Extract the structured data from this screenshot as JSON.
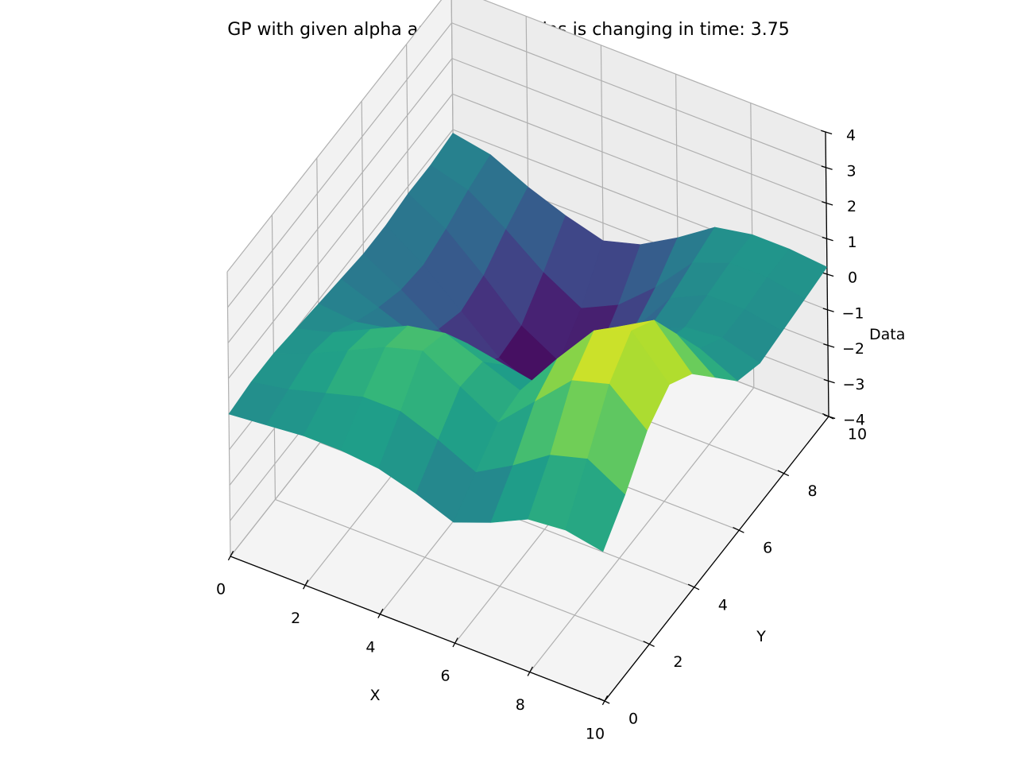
{
  "chart_data": {
    "type": "surface3d",
    "title": "GP with given alpha assuming the bias is changing in time: 3.75",
    "xlabel": "X",
    "ylabel": "Y",
    "zlabel": "Data",
    "xlim": [
      0,
      10
    ],
    "ylim": [
      0,
      10
    ],
    "zlim": [
      -4,
      4
    ],
    "x_ticks": [
      "0",
      "2",
      "4",
      "6",
      "8",
      "10"
    ],
    "y_ticks": [
      "0",
      "2",
      "4",
      "6",
      "8",
      "10"
    ],
    "z_ticks": [
      "−4",
      "−3",
      "−2",
      "−1",
      "0",
      "1",
      "2",
      "3",
      "4"
    ],
    "x_tick_values": [
      0,
      2,
      4,
      6,
      8,
      10
    ],
    "y_tick_values": [
      0,
      2,
      4,
      6,
      8,
      10
    ],
    "z_tick_values": [
      -4,
      -3,
      -2,
      -1,
      0,
      1,
      2,
      3,
      4
    ],
    "grid": true,
    "colormap": "viridis",
    "surface_x": [
      0,
      1,
      2,
      3,
      4,
      5,
      6,
      7,
      8,
      9,
      10
    ],
    "surface_y": [
      0,
      1,
      2,
      3,
      4,
      5,
      6,
      7,
      8,
      9,
      10
    ],
    "surface_z": [
      [
        0.0,
        0.1,
        0.1,
        0.0,
        -0.1,
        -0.2,
        -0.3,
        -0.3,
        -0.2,
        -0.2,
        -0.1
      ],
      [
        0.1,
        0.3,
        0.5,
        0.3,
        -0.2,
        -0.6,
        -0.9,
        -1.0,
        -0.8,
        -0.5,
        -0.3
      ],
      [
        0.2,
        0.6,
        1.0,
        0.8,
        0.0,
        -1.0,
        -1.6,
        -1.9,
        -1.7,
        -1.2,
        -0.8
      ],
      [
        0.2,
        0.9,
        1.5,
        1.3,
        0.3,
        -0.9,
        -2.2,
        -2.8,
        -2.7,
        -2.0,
        -1.2
      ],
      [
        0.1,
        0.9,
        1.8,
        1.5,
        0.4,
        -1.0,
        -2.4,
        -3.2,
        -3.3,
        -2.6,
        -1.5
      ],
      [
        -0.2,
        0.5,
        1.2,
        1.1,
        0.2,
        -1.1,
        -2.3,
        -2.9,
        -2.8,
        -2.1,
        -1.2
      ],
      [
        -0.6,
        0.0,
        0.6,
        0.7,
        0.0,
        -0.8,
        -1.5,
        -1.8,
        -1.6,
        -1.2,
        -0.6
      ],
      [
        -0.2,
        0.6,
        1.6,
        2.0,
        1.2,
        0.2,
        -0.3,
        -0.4,
        -0.3,
        -0.1,
        0.1
      ],
      [
        0.3,
        1.3,
        2.6,
        3.2,
        2.5,
        1.3,
        0.4,
        0.1,
        0.2,
        0.3,
        0.3
      ],
      [
        0.4,
        1.6,
        2.9,
        3.6,
        3.1,
        1.9,
        0.7,
        0.2,
        0.2,
        0.3,
        0.3
      ],
      [
        0.2,
        1.0,
        2.0,
        2.5,
        2.0,
        1.1,
        0.2,
        -0.1,
        0.0,
        0.1,
        0.2
      ]
    ]
  }
}
